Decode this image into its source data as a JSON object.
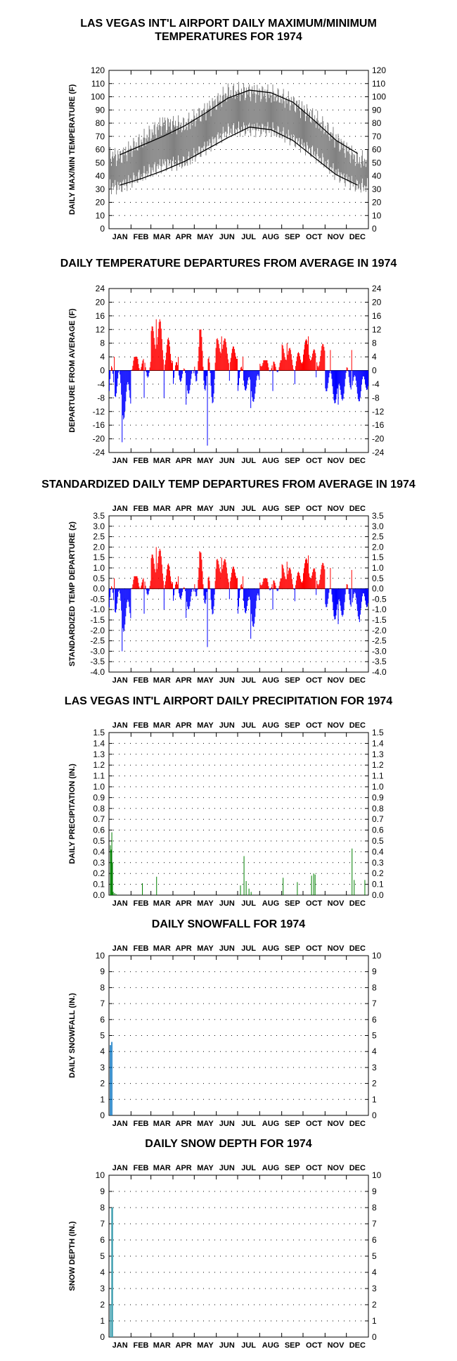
{
  "months": [
    "JAN",
    "FEB",
    "MAR",
    "APR",
    "MAY",
    "JUN",
    "JUL",
    "AUG",
    "SEP",
    "OCT",
    "NOV",
    "DEC"
  ],
  "chart_data": [
    {
      "type": "line",
      "title_lines": [
        "LAS VEGAS INT'L AIRPORT DAILY MAXIMUM/MINIMUM",
        "TEMPERATURES FOR 1974"
      ],
      "ylabel": "DAILY MAX/MIN TEMPERATURE (F)",
      "ylim": [
        0,
        120
      ],
      "yticks": [
        0,
        10,
        20,
        30,
        40,
        50,
        60,
        70,
        80,
        90,
        100,
        110,
        120
      ],
      "top_month_labels": false,
      "series": [
        {
          "name": "",
          "kind": "normal-max",
          "color": "#000000",
          "x_month_mid": [
            0.5,
            1.5,
            2.5,
            3.5,
            4.5,
            5.5,
            6.5,
            7.5,
            8.5,
            9.5,
            10.5,
            11.5
          ],
          "values": [
            56,
            63,
            70,
            78,
            88,
            99,
            105,
            103,
            96,
            82,
            67,
            57
          ]
        },
        {
          "name": "",
          "kind": "normal-min",
          "color": "#000000",
          "x_month_mid": [
            0.5,
            1.5,
            2.5,
            3.5,
            4.5,
            5.5,
            6.5,
            7.5,
            8.5,
            9.5,
            10.5,
            11.5
          ],
          "values": [
            33,
            38,
            44,
            51,
            60,
            69,
            77,
            75,
            67,
            54,
            41,
            33
          ]
        },
        {
          "name": "",
          "kind": "daily-range",
          "color": "#808080",
          "x_month_mid": [
            0.5,
            1.5,
            2.5,
            3.5,
            4.5,
            5.5,
            6.5,
            7.5,
            8.5,
            9.5,
            10.5,
            11.5
          ],
          "max_values": [
            55,
            66,
            80,
            78,
            90,
            103,
            104,
            102,
            96,
            84,
            68,
            52
          ],
          "min_values": [
            32,
            40,
            49,
            50,
            62,
            74,
            76,
            75,
            68,
            57,
            42,
            32
          ]
        }
      ]
    },
    {
      "type": "bar",
      "title_lines": [
        "DAILY TEMPERATURE DEPARTURES FROM AVERAGE IN 1974"
      ],
      "ylabel": "DEPARTURE FROM AVERAGE (F)",
      "ylim": [
        -24,
        24
      ],
      "yticks": [
        -24,
        -20,
        -16,
        -12,
        -8,
        -4,
        0,
        4,
        8,
        12,
        16,
        20,
        24
      ],
      "top_month_labels": false,
      "pos_color": "#ff0000",
      "neg_color": "#0000ff",
      "x_month_mid": [
        0.5,
        1.5,
        2.5,
        3.5,
        4.5,
        5.5,
        6.5,
        7.5,
        8.5,
        9.5,
        10.5,
        11.5
      ],
      "values": [
        -6,
        2,
        8,
        -2,
        1,
        6,
        -4,
        2,
        4,
        5,
        -5,
        -4
      ],
      "extremes_max": [
        4,
        4,
        15,
        4,
        12,
        10,
        4,
        3,
        8,
        10,
        6,
        6
      ],
      "extremes_min": [
        -21,
        -8,
        -8,
        -10,
        -22,
        -3,
        -11,
        -6,
        -4,
        -2,
        -10,
        -9
      ]
    },
    {
      "type": "bar",
      "title_lines": [
        "STANDARDIZED DAILY TEMP DEPARTURES FROM AVERAGE IN 1974"
      ],
      "ylabel": "STANDARDIZED TEMP DEPARTURE (z)",
      "ylim": [
        -4.0,
        3.5
      ],
      "yticks": [
        -4.0,
        -3.5,
        -3.0,
        -2.5,
        -2.0,
        -1.5,
        -1.0,
        -0.5,
        0.0,
        0.5,
        1.0,
        1.5,
        2.0,
        2.5,
        3.0,
        3.5
      ],
      "tick_decimals": 1,
      "top_month_labels": true,
      "pos_color": "#ff0000",
      "neg_color": "#0000ff",
      "x_month_mid": [
        0.5,
        1.5,
        2.5,
        3.5,
        4.5,
        5.5,
        6.5,
        7.5,
        8.5,
        9.5,
        10.5,
        11.5
      ],
      "values": [
        -0.9,
        0.3,
        1.0,
        -0.3,
        0.2,
        0.9,
        -0.8,
        0.3,
        0.6,
        0.8,
        -0.7,
        -0.6
      ],
      "extremes_max": [
        0.5,
        0.6,
        2.0,
        0.6,
        1.8,
        1.5,
        0.6,
        0.5,
        1.3,
        1.6,
        1.0,
        0.9
      ],
      "extremes_min": [
        -3.0,
        -1.2,
        -1.0,
        -1.4,
        -2.8,
        -0.5,
        -2.4,
        -1.0,
        -0.6,
        -0.3,
        -1.7,
        -1.6
      ]
    },
    {
      "type": "bar",
      "title_lines": [
        "LAS VEGAS INT'L AIRPORT DAILY PRECIPITATION FOR 1974"
      ],
      "ylabel": "DAILY PRECIPITATION (IN.)",
      "ylim": [
        0,
        1.5
      ],
      "yticks": [
        0.0,
        0.1,
        0.2,
        0.3,
        0.4,
        0.5,
        0.6,
        0.7,
        0.8,
        0.9,
        1.0,
        1.1,
        1.2,
        1.3,
        1.4,
        1.5
      ],
      "tick_decimals": 1,
      "top_month_labels": true,
      "color": "#008000",
      "x_day": [
        2,
        3,
        4,
        5,
        6,
        8,
        10,
        47,
        67,
        185,
        190,
        193,
        197,
        200,
        245,
        265,
        285,
        288,
        290,
        342,
        345,
        360
      ],
      "values": [
        0.46,
        0.42,
        0.58,
        0.3,
        0.03,
        0.02,
        0.01,
        0.11,
        0.17,
        0.09,
        0.36,
        0.13,
        0.06,
        0.03,
        0.16,
        0.12,
        0.18,
        0.2,
        0.19,
        0.43,
        0.14,
        0.14
      ]
    },
    {
      "type": "bar",
      "title_lines": [
        "DAILY SNOWFALL FOR 1974"
      ],
      "ylabel": "DAILY SNOWFALL (IN.)",
      "ylim": [
        0,
        10
      ],
      "yticks": [
        0,
        1,
        2,
        3,
        4,
        5,
        6,
        7,
        8,
        9,
        10
      ],
      "top_month_labels": true,
      "color": "#0070c0",
      "x_day": [
        2,
        4
      ],
      "values": [
        4.4,
        4.6
      ]
    },
    {
      "type": "bar",
      "title_lines": [
        "DAILY SNOW DEPTH FOR 1974"
      ],
      "ylabel": "SNOW DEPTH (IN.)",
      "ylim": [
        0,
        10
      ],
      "yticks": [
        0,
        1,
        2,
        3,
        4,
        5,
        6,
        7,
        8,
        9,
        10
      ],
      "top_month_labels": true,
      "color": "#40a0b0",
      "x_day": [
        2,
        4,
        5
      ],
      "values": [
        2.0,
        8.0,
        8.0
      ]
    }
  ]
}
